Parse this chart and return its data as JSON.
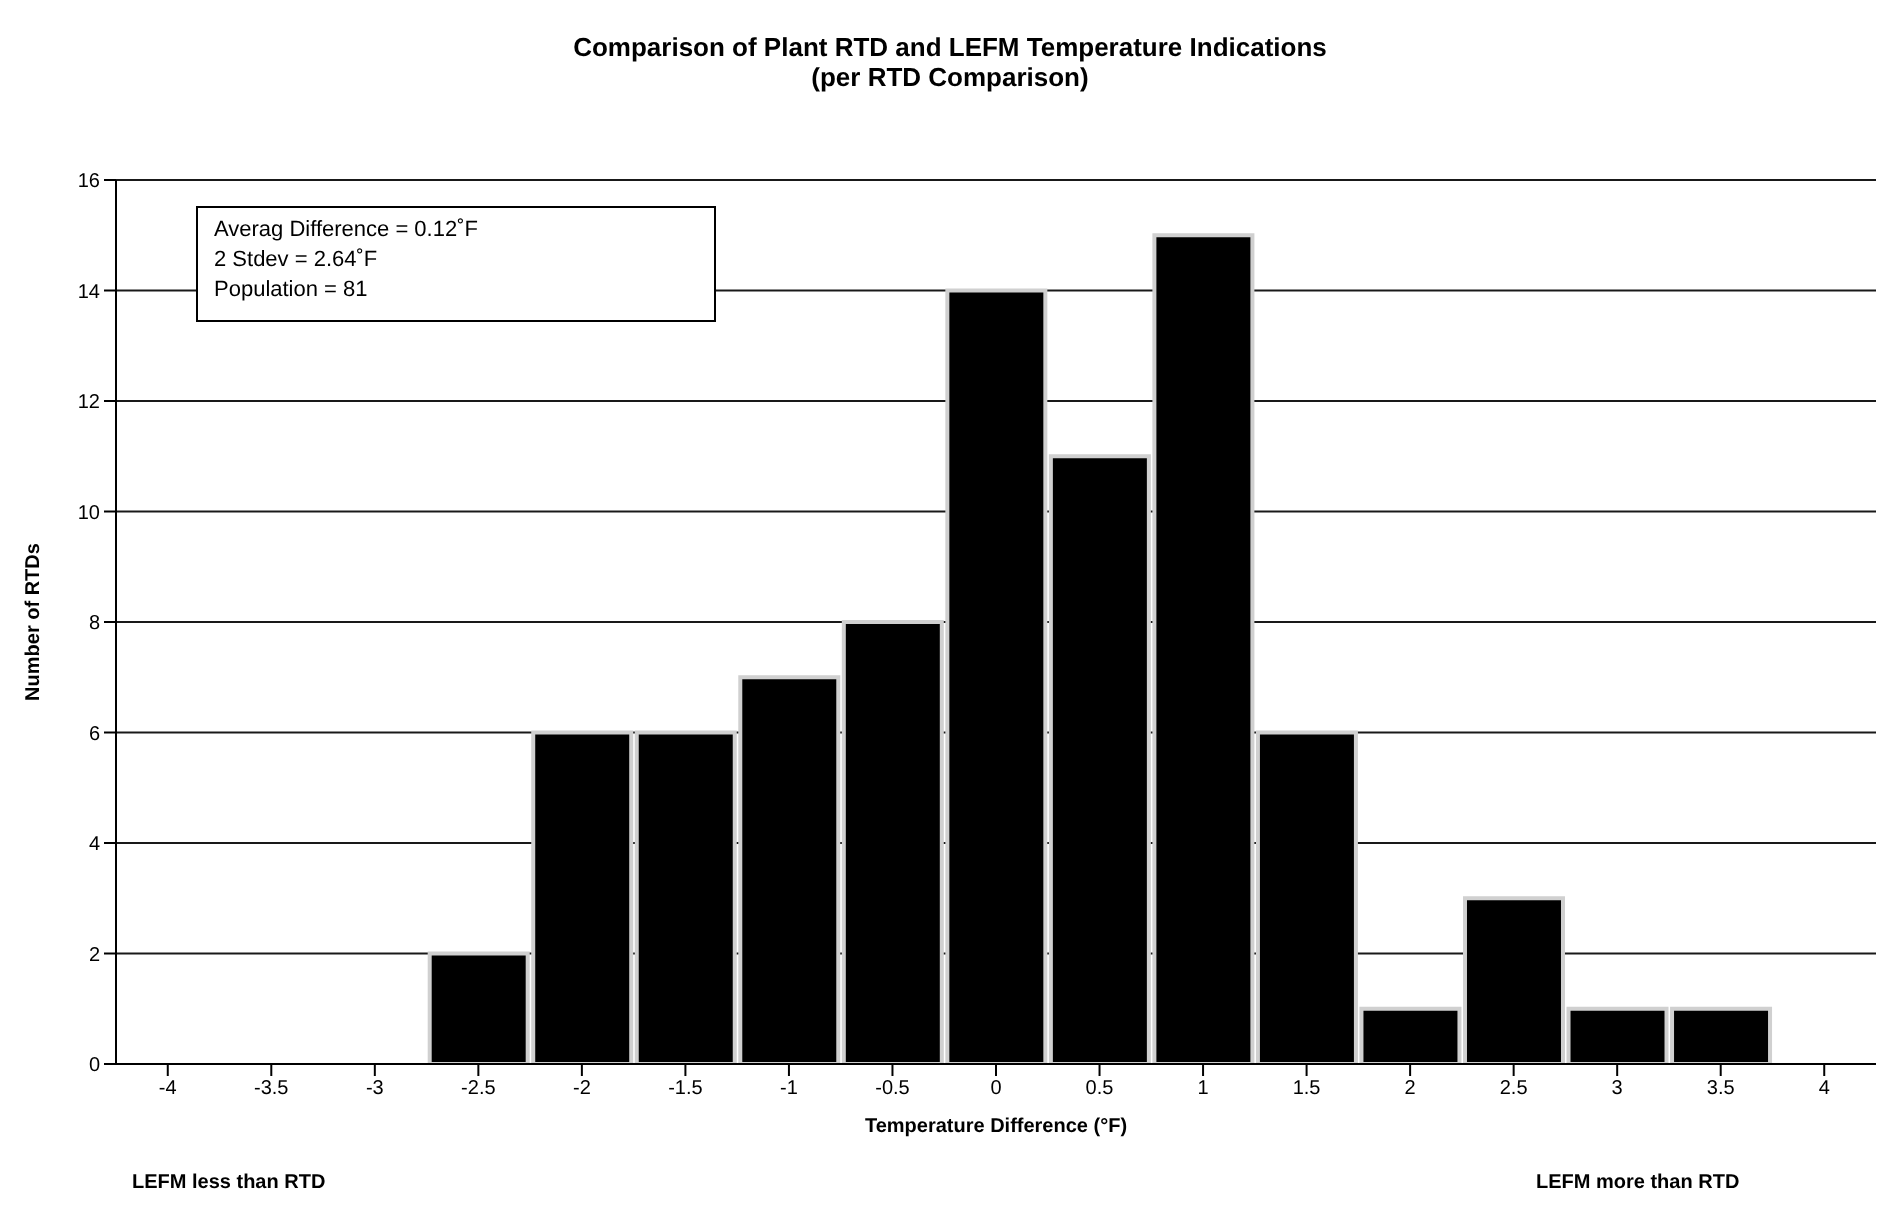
{
  "chart_data": {
    "type": "bar",
    "title": "Comparison of Plant RTD and LEFM Temperature Indications",
    "subtitle": "(per RTD Comparison)",
    "xlabel": "Temperature Difference (°F)",
    "ylabel": "Number of RTDs",
    "categories": [
      "-4",
      "-3.5",
      "-3",
      "-2.5",
      "-2",
      "-1.5",
      "-1",
      "-0.5",
      "0",
      "0.5",
      "1",
      "1.5",
      "2",
      "2.5",
      "3",
      "3.5",
      "4"
    ],
    "values": [
      0,
      0,
      0,
      2,
      6,
      6,
      7,
      8,
      14,
      11,
      15,
      6,
      1,
      3,
      1,
      1,
      0
    ],
    "color": "#000000",
    "ylim": [
      0,
      16
    ],
    "yticks": [
      0,
      2,
      4,
      6,
      8,
      10,
      12,
      14,
      16
    ],
    "grid": "y",
    "legend": false,
    "annotations": [
      "Averag Difference = 0.12˚F",
      "2 Stdev = 2.64˚F",
      "Population = 81",
      "LEFM less than RTD",
      "LEFM more than RTD"
    ]
  }
}
